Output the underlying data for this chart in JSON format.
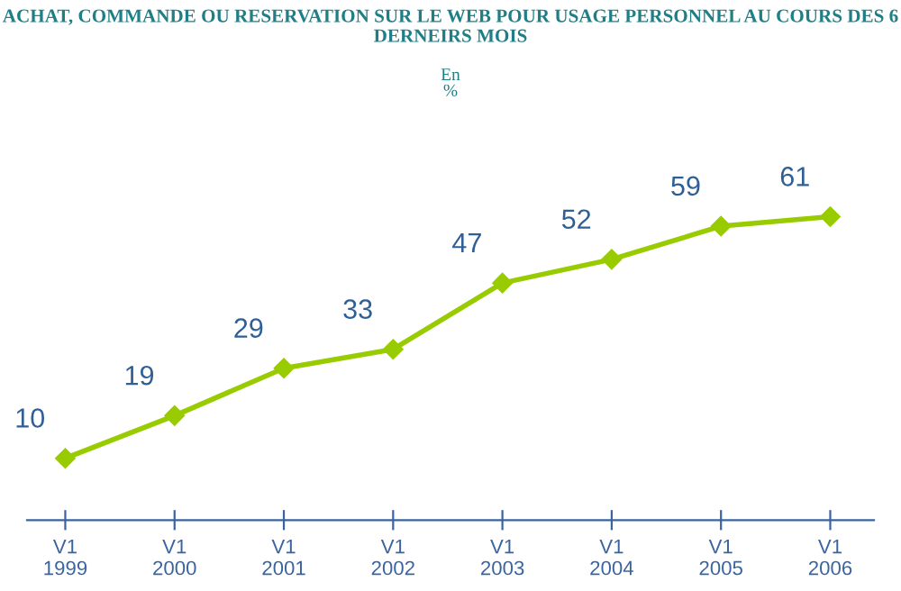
{
  "chart_data": {
    "type": "line",
    "title": "ACHAT, COMMANDE OU RESERVATION SUR LE WEB POUR USAGE PERSONNEL AU COURS DES 6 DERNEIRS MOIS",
    "subtitle": "En\n%",
    "categories": [
      "V1\n1999",
      "V1\n2000",
      "V1\n2001",
      "V1\n2002",
      "V1\n2003",
      "V1\n2004",
      "V1\n2005",
      "V1\n2006"
    ],
    "series": [
      {
        "color": "#99cc00",
        "values": [
          10,
          19,
          29,
          33,
          47,
          52,
          59,
          61
        ]
      }
    ],
    "marker": "diamond",
    "data_labels": true,
    "grid": false,
    "legend": false,
    "tick_labels": "x"
  }
}
